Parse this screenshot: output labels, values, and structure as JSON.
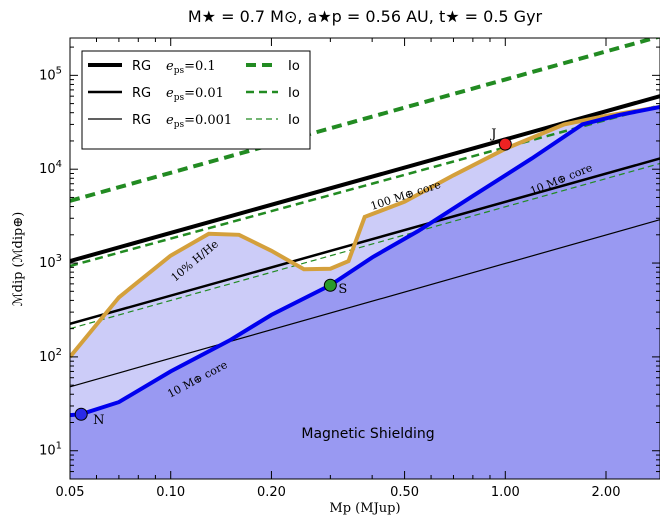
{
  "chart_data": {
    "type": "line",
    "title": "M★ = 0.7 M⊙, a★p = 0.56 AU, t★ = 0.5 Gyr",
    "xlabel": "Mp (MJup)",
    "ylabel": "ℳdip (ℳdip⊕)",
    "xscale": "log",
    "yscale": "log",
    "xlim": [
      0.05,
      2.9
    ],
    "ylim": [
      5,
      250000
    ],
    "x_ticks": [
      {
        "value": 0.05,
        "label": "0.05"
      },
      {
        "value": 0.1,
        "label": "0.10"
      },
      {
        "value": 0.2,
        "label": "0.20"
      },
      {
        "value": 0.5,
        "label": "0.50"
      },
      {
        "value": 1.0,
        "label": "1.00"
      },
      {
        "value": 2.0,
        "label": "2.00"
      }
    ],
    "y_ticks": [
      {
        "value": 10,
        "label": "10",
        "exp": "1"
      },
      {
        "value": 100,
        "label": "10",
        "exp": "2"
      },
      {
        "value": 1000,
        "label": "10",
        "exp": "3"
      },
      {
        "value": 10000,
        "label": "10",
        "exp": "4"
      },
      {
        "value": 100000,
        "label": "10",
        "exp": "5"
      }
    ],
    "grid": false,
    "legend_position": "top-left",
    "legend": [
      {
        "label": "RG",
        "eps_label": "e",
        "eps_sub": "ps",
        "eps_value": "=0.1",
        "style": "solid",
        "width": 4,
        "color": "#000000"
      },
      {
        "label": "RG",
        "eps_label": "e",
        "eps_sub": "ps",
        "eps_value": "=0.01",
        "style": "solid",
        "width": 2.5,
        "color": "#000000"
      },
      {
        "label": "RG",
        "eps_label": "e",
        "eps_sub": "ps",
        "eps_value": "=0.001",
        "style": "solid",
        "width": 1.2,
        "color": "#000000"
      },
      {
        "label": "Io",
        "style": "dashed",
        "width": 4,
        "color": "#228b22"
      },
      {
        "label": "Io",
        "style": "dashed",
        "width": 2.5,
        "color": "#228b22"
      },
      {
        "label": "Io",
        "style": "dashed",
        "width": 1.2,
        "color": "#228b22"
      }
    ],
    "power_lines": [
      {
        "kind": "RG",
        "eps": 0.1,
        "x": [
          0.05,
          2.9
        ],
        "y": [
          1050,
          60000
        ],
        "color": "#000000",
        "width": 4,
        "dash": false
      },
      {
        "kind": "RG",
        "eps": 0.01,
        "x": [
          0.05,
          2.9
        ],
        "y": [
          225,
          13000
        ],
        "color": "#000000",
        "width": 2.5,
        "dash": false
      },
      {
        "kind": "RG",
        "eps": 0.001,
        "x": [
          0.05,
          2.9
        ],
        "y": [
          48,
          2900
        ],
        "color": "#000000",
        "width": 1.2,
        "dash": false
      },
      {
        "kind": "Io",
        "eps": 0.1,
        "x": [
          0.05,
          2.9
        ],
        "y": [
          4600,
          260000
        ],
        "color": "#228b22",
        "width": 4,
        "dash": true
      },
      {
        "kind": "Io",
        "eps": 0.01,
        "x": [
          0.05,
          2.9
        ],
        "y": [
          930,
          48000
        ],
        "color": "#228b22",
        "width": 2.5,
        "dash": true
      },
      {
        "kind": "Io",
        "eps": 0.001,
        "x": [
          0.05,
          2.9
        ],
        "y": [
          200,
          11500
        ],
        "color": "#228b22",
        "width": 1.2,
        "dash": true
      }
    ],
    "series": [
      {
        "name": "10% H/He",
        "color": "#d4a03c",
        "x": [
          0.05,
          0.07,
          0.1,
          0.13,
          0.16,
          0.2,
          0.25,
          0.3,
          0.34,
          0.38,
          0.5,
          0.7,
          1.0,
          1.5,
          2.0,
          2.9
        ],
        "y": [
          100,
          430,
          1200,
          2050,
          2000,
          1350,
          860,
          870,
          1050,
          3100,
          4500,
          8600,
          16500,
          30000,
          37000,
          46000
        ]
      },
      {
        "name": "10 M⊕ core",
        "color": "#0000ee",
        "x": [
          0.05,
          0.054,
          0.07,
          0.1,
          0.15,
          0.2,
          0.3,
          0.4,
          0.55,
          0.8,
          1.2,
          1.7,
          2.2,
          2.9
        ],
        "y": [
          24,
          24.5,
          33,
          70,
          150,
          280,
          580,
          1150,
          2200,
          5200,
          13000,
          30000,
          38000,
          46000
        ]
      }
    ],
    "shaded_region": {
      "name": "Magnetic Shielding",
      "color": "#9999f2"
    },
    "planets": [
      {
        "name": "N",
        "x": 0.054,
        "y": 24.5,
        "color": "#2a2ae8"
      },
      {
        "name": "S",
        "x": 0.3,
        "y": 580,
        "color": "#2a9a2a"
      },
      {
        "name": "J",
        "x": 1.0,
        "y": 18500,
        "color": "#ee2222"
      }
    ],
    "annotations": [
      {
        "id": "hhe",
        "text": "10% H/He"
      },
      {
        "id": "core100",
        "text": "100 M⊕ core"
      },
      {
        "id": "core10_upper",
        "text": "10 M⊕ core"
      },
      {
        "id": "core10_lower",
        "text": "10 M⊕ core"
      },
      {
        "id": "shielding",
        "text": "Magnetic Shielding"
      }
    ]
  }
}
